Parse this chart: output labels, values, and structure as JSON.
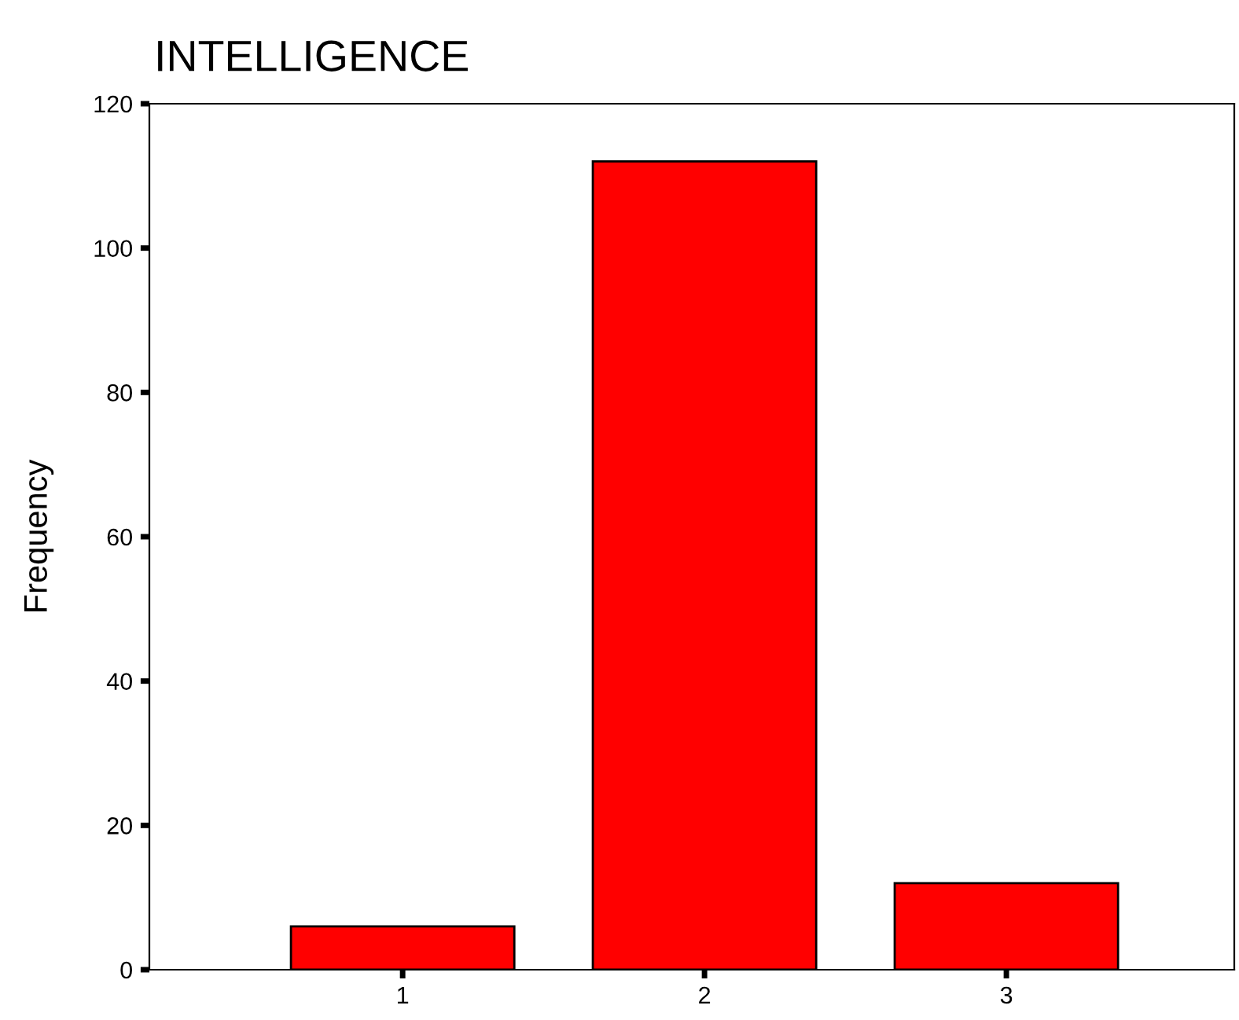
{
  "chart_data": {
    "type": "bar",
    "title": "INTELLIGENCE",
    "ylabel": "Frequency",
    "categories": [
      "1",
      "2",
      "3"
    ],
    "values": [
      6,
      112,
      12
    ],
    "color": "#ff0000",
    "ylim": [
      0,
      120
    ],
    "yticks": [
      0,
      20,
      40,
      60,
      80,
      100,
      120
    ],
    "grid": false,
    "legend": false
  }
}
